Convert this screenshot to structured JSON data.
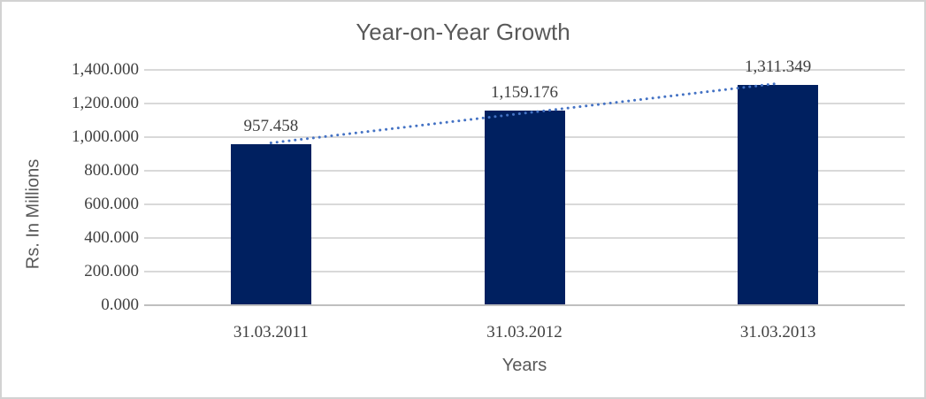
{
  "frame": {
    "background": "#ffffff",
    "border_color": "#d2d2d2"
  },
  "chart_data": {
    "type": "bar",
    "title": "Year-on-Year Growth",
    "xlabel": "Years",
    "ylabel": "Rs. In Millions",
    "categories": [
      "31.03.2011",
      "31.03.2012",
      "31.03.2013"
    ],
    "values": [
      957.458,
      1159.176,
      1311.349
    ],
    "data_labels": [
      "957.458",
      "1,159.176",
      "1,311.349"
    ],
    "ylim": [
      0,
      1400
    ],
    "y_tick_values": [
      0,
      200,
      400,
      600,
      800,
      1000,
      1200,
      1400
    ],
    "y_tick_labels": [
      "0.000",
      "200.000",
      "400.000",
      "600.000",
      "800.000",
      "1,000.000",
      "1,200.000",
      "1,400.000"
    ],
    "grid": true,
    "legend": "none",
    "bar_color": "#002060",
    "trendline": {
      "type": "linear",
      "style": "dotted",
      "color": "#4472C4"
    },
    "colors": {
      "gridline": "#d9d9d9",
      "axis_line": "#bfbfbf",
      "number_text": "#404040",
      "title_text": "#595959"
    }
  }
}
